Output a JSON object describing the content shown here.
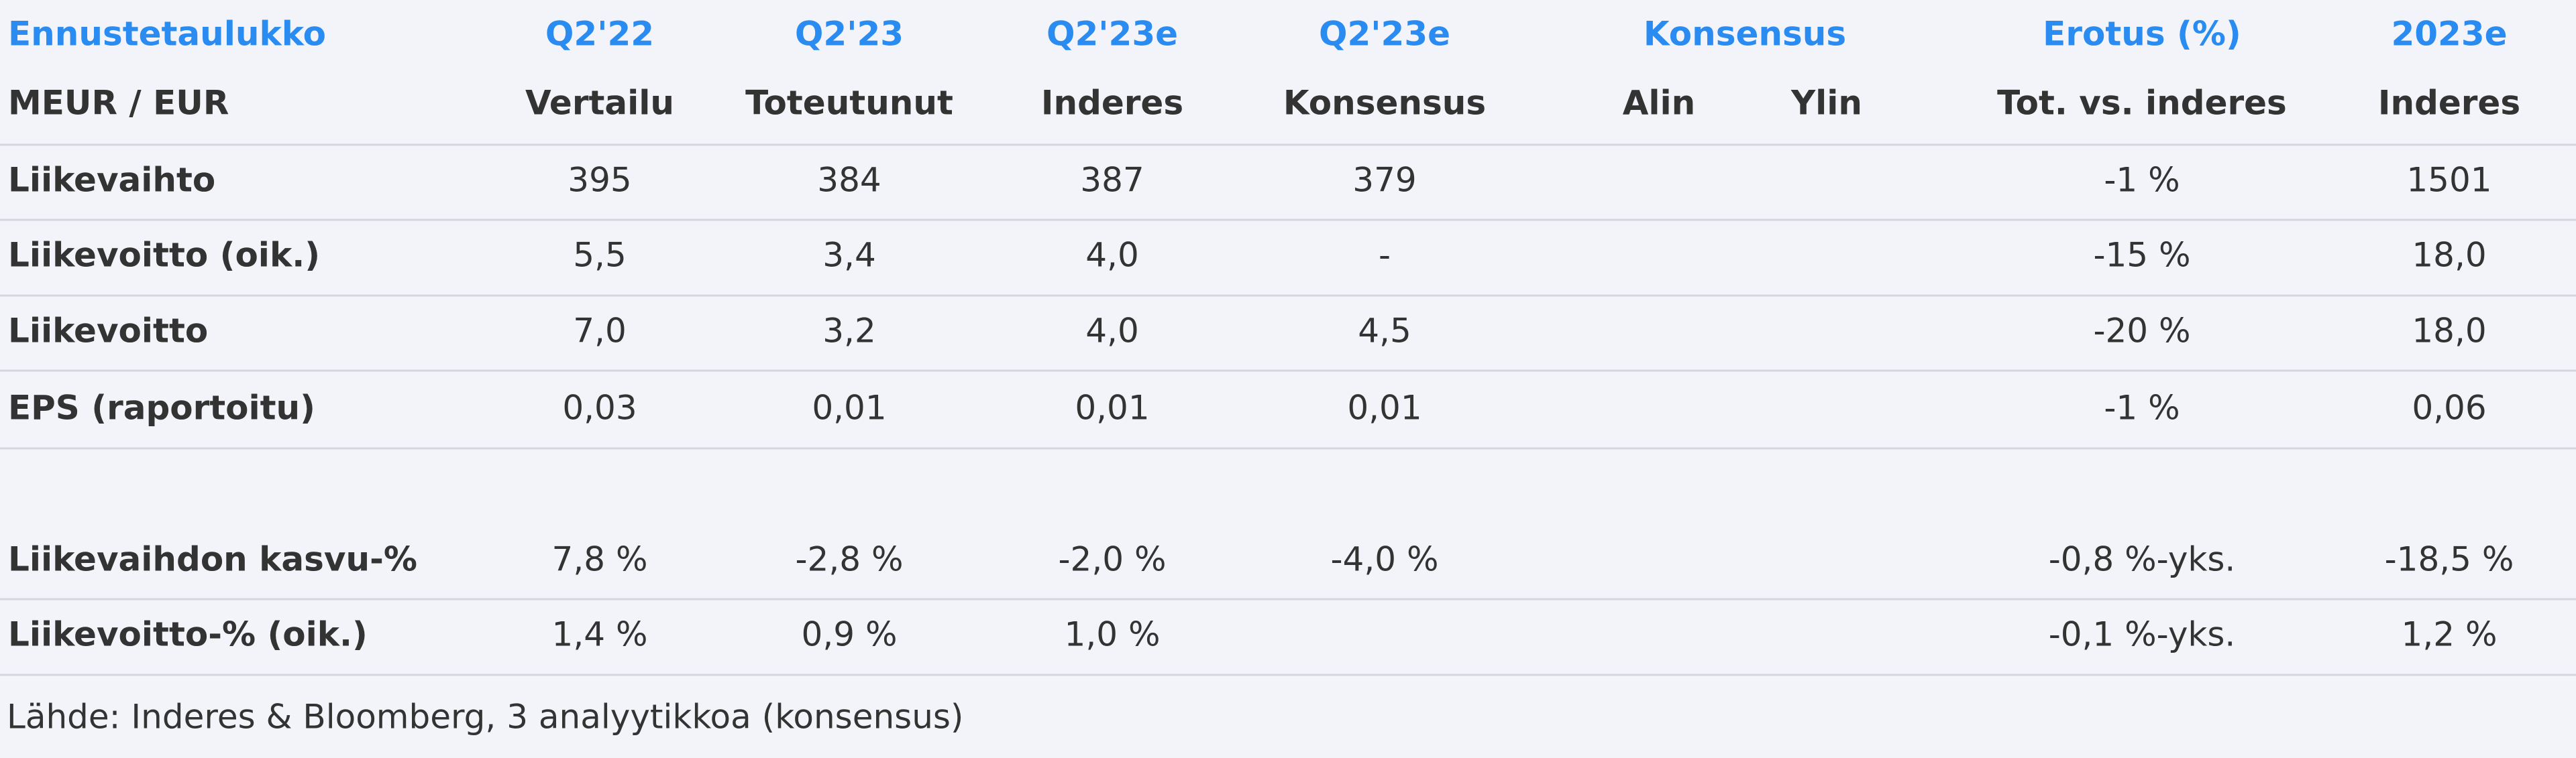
{
  "header": {
    "row1": [
      "Ennustetaulukko",
      "Q2'22",
      "Q2'23",
      "Q2'23e",
      "Q2'23e",
      "Konsensus",
      "Erotus (%)",
      "2023e"
    ],
    "row2": [
      "MEUR / EUR",
      "Vertailu",
      "Toteutunut",
      "Inderes",
      "Konsensus",
      "Alin",
      "Ylin",
      "Tot. vs. inderes",
      "Inderes"
    ]
  },
  "table": {
    "rows": [
      [
        "Liikevaihto",
        "395",
        "384",
        "387",
        "379",
        null,
        null,
        "-1 %",
        "1501"
      ],
      [
        "Liikevoitto (oik.)",
        "5,5",
        "3,4",
        "4,0",
        "-",
        null,
        null,
        "-15 %",
        "18,0"
      ],
      [
        "Liikevoitto",
        "7,0",
        "3,2",
        "4,0",
        "4,5",
        null,
        null,
        "-20 %",
        "18,0"
      ],
      [
        "EPS (raportoitu)",
        "0,03",
        "0,01",
        "0,01",
        "0,01",
        null,
        null,
        "-1 %",
        "0,06"
      ],
      [
        "Liikevaihdon kasvu-%",
        "7,8 %",
        "-2,8 %",
        "-2,0 %",
        "-4,0 %",
        null,
        null,
        "-0,8 %-yks.",
        "-18,5 %"
      ],
      [
        "Liikevoitto-% (oik.)",
        "1,4 %",
        "0,9 %",
        "1,0 %",
        null,
        null,
        null,
        "-0,1 %-yks.",
        "1,2 %"
      ]
    ]
  },
  "source": "Lähde: Inderes & Bloomberg, 3 analyytikkoa  (konsensus)"
}
